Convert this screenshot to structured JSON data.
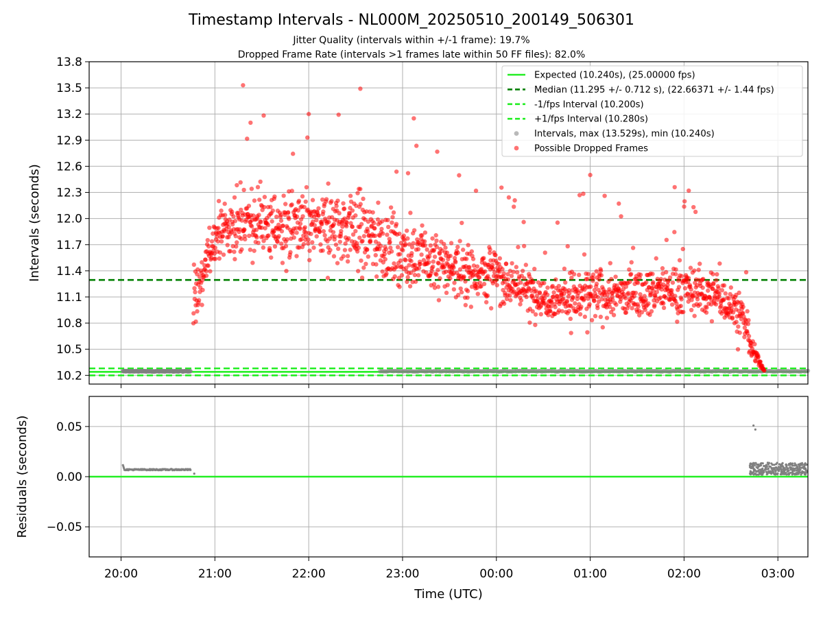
{
  "chart_data": [
    {
      "type": "scatter",
      "title": "Timestamp Intervals - NL000M_20250510_200149_506301",
      "subtitle_1": "Jitter Quality (intervals within +/-1 frame): 19.7%",
      "subtitle_2": "Dropped Frame Rate (intervals >1 frames late within 50 FF files): 82.0%",
      "ylabel": "Intervals (seconds)",
      "ylim": [
        10.1,
        13.8
      ],
      "xlim": [
        -0.34,
        7.32
      ],
      "x_unit": "hours since 20:00 UTC",
      "yticks": [
        "10.2",
        "10.5",
        "10.8",
        "11.1",
        "11.4",
        "11.7",
        "12.0",
        "12.3",
        "12.6",
        "12.9",
        "13.2",
        "13.5",
        "13.8"
      ],
      "grid": true,
      "legend_position": "top-right",
      "reference_lines": [
        {
          "name": "Expected (10.240s), (25.00000 fps)",
          "value": 10.24,
          "style": "solid",
          "color": "#22ee22"
        },
        {
          "name": "Median (11.295 +/- 0.712 s), (22.66371 +/- 1.44 fps)",
          "value": 11.295,
          "style": "dashed",
          "color": "#007f00"
        },
        {
          "name": "-1/fps Interval (10.200s)",
          "value": 10.2,
          "style": "dashed",
          "color": "#22ee22"
        },
        {
          "name": "+1/fps Interval (10.280s)",
          "value": 10.28,
          "style": "dashed",
          "color": "#22ee22"
        }
      ],
      "series": [
        {
          "name": "Intervals, max (13.529s), min (10.240s)",
          "color": "#808080",
          "segments": [
            {
              "x_range": [
                0.02,
                0.74
              ],
              "y": 10.247,
              "count": 140
            },
            {
              "x_range": [
                2.76,
                7.32
              ],
              "y": 10.248,
              "count": 260
            }
          ]
        },
        {
          "name": "Possible Dropped Frames",
          "color": "#ff0000",
          "envelope": [
            {
              "x": 0.77,
              "y_min": 10.25,
              "y_max": 12.4,
              "center": 11.0
            },
            {
              "x": 1.0,
              "y_min": 11.2,
              "y_max": 12.3,
              "center": 11.8
            },
            {
              "x": 1.3,
              "y_min": 11.5,
              "y_max": 13.55,
              "center": 11.95
            },
            {
              "x": 2.0,
              "y_min": 11.2,
              "y_max": 13.2,
              "center": 11.9
            },
            {
              "x": 2.5,
              "y_min": 10.95,
              "y_max": 13.5,
              "center": 11.9
            },
            {
              "x": 3.0,
              "y_min": 11.1,
              "y_max": 13.15,
              "center": 11.6
            },
            {
              "x": 3.5,
              "y_min": 10.95,
              "y_max": 12.7,
              "center": 11.45
            },
            {
              "x": 4.0,
              "y_min": 10.8,
              "y_max": 12.55,
              "center": 11.35
            },
            {
              "x": 4.5,
              "y_min": 10.6,
              "y_max": 11.8,
              "center": 11.1
            },
            {
              "x": 5.0,
              "y_min": 10.7,
              "y_max": 12.5,
              "center": 11.1
            },
            {
              "x": 5.5,
              "y_min": 10.75,
              "y_max": 12.0,
              "center": 11.15
            },
            {
              "x": 6.0,
              "y_min": 10.75,
              "y_max": 12.35,
              "center": 11.2
            },
            {
              "x": 6.4,
              "y_min": 10.6,
              "y_max": 12.0,
              "center": 11.1
            },
            {
              "x": 6.62,
              "y_min": 10.35,
              "y_max": 11.75,
              "center": 10.9
            },
            {
              "x": 6.72,
              "y_min": 10.24,
              "y_max": 10.9,
              "center": 10.5
            },
            {
              "x": 6.86,
              "y_min": 10.24,
              "y_max": 10.27,
              "center": 10.25
            }
          ]
        }
      ]
    },
    {
      "type": "scatter",
      "xlabel": "Time (UTC)",
      "ylabel": "Residuals (seconds)",
      "ylim": [
        -0.08,
        0.08
      ],
      "xlim": [
        -0.34,
        7.32
      ],
      "yticks": [
        "0.05",
        "0.00",
        "−0.05"
      ],
      "xticks": [
        "20:00",
        "21:00",
        "22:00",
        "23:00",
        "00:00",
        "01:00",
        "02:00",
        "03:00"
      ],
      "grid": true,
      "reference_lines": [
        {
          "value": 0.0,
          "style": "solid",
          "color": "#22ee22"
        }
      ],
      "series": [
        {
          "color": "#808080",
          "segments": [
            {
              "x_range": [
                0.02,
                0.74
              ],
              "y": 0.007,
              "count": 140
            },
            {
              "x_range": [
                6.7,
                7.32
              ],
              "y_min": 0.002,
              "y_max": 0.016,
              "count": 300
            }
          ],
          "outliers": [
            {
              "x": 0.78,
              "y": 0.003
            },
            {
              "x": 6.74,
              "y": 0.051
            },
            {
              "x": 6.76,
              "y": 0.047
            }
          ]
        }
      ]
    }
  ]
}
